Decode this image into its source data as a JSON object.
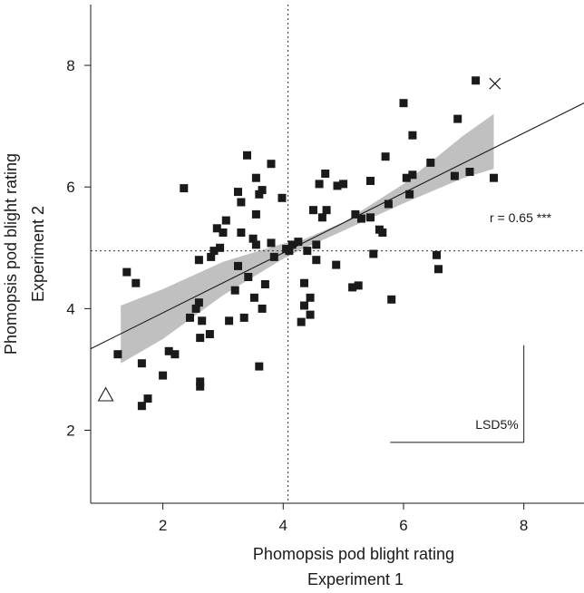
{
  "chart_data": {
    "type": "scatter",
    "xlabel": [
      "Phomopsis pod blight rating",
      "Experiment 1"
    ],
    "ylabel": [
      "Phomopsis pod blight rating",
      "Experiment 2"
    ],
    "xlim": [
      0.8,
      9.0
    ],
    "ylim": [
      0.8,
      9.0
    ],
    "xticks": [
      2,
      4,
      6,
      8
    ],
    "yticks": [
      2,
      4,
      6,
      8
    ],
    "grid": false,
    "colors": {
      "points": "#1a1a1a",
      "band": "#c0c0c0",
      "line": "#1a1a1a"
    },
    "points": [
      [
        1.25,
        3.25
      ],
      [
        1.4,
        4.6
      ],
      [
        1.55,
        4.42
      ],
      [
        1.65,
        3.1
      ],
      [
        1.75,
        2.52
      ],
      [
        1.65,
        2.4
      ],
      [
        2.0,
        2.9
      ],
      [
        2.1,
        3.3
      ],
      [
        2.2,
        3.25
      ],
      [
        2.35,
        5.98
      ],
      [
        2.45,
        3.85
      ],
      [
        2.55,
        4.0
      ],
      [
        2.6,
        4.1
      ],
      [
        2.65,
        3.8
      ],
      [
        2.62,
        3.52
      ],
      [
        2.62,
        2.8
      ],
      [
        2.62,
        2.72
      ],
      [
        2.6,
        4.8
      ],
      [
        2.78,
        3.58
      ],
      [
        2.8,
        4.85
      ],
      [
        2.85,
        4.95
      ],
      [
        2.9,
        5.32
      ],
      [
        2.95,
        5.0
      ],
      [
        3.0,
        5.25
      ],
      [
        3.05,
        5.45
      ],
      [
        3.1,
        3.8
      ],
      [
        3.2,
        4.3
      ],
      [
        3.25,
        4.7
      ],
      [
        3.25,
        5.92
      ],
      [
        3.3,
        5.75
      ],
      [
        3.3,
        5.25
      ],
      [
        3.35,
        3.85
      ],
      [
        3.4,
        6.52
      ],
      [
        3.42,
        4.52
      ],
      [
        3.5,
        5.15
      ],
      [
        3.52,
        4.18
      ],
      [
        3.55,
        5.05
      ],
      [
        3.55,
        5.55
      ],
      [
        3.55,
        6.15
      ],
      [
        3.6,
        5.88
      ],
      [
        3.6,
        3.05
      ],
      [
        3.65,
        5.95
      ],
      [
        3.65,
        4.0
      ],
      [
        3.7,
        4.4
      ],
      [
        3.8,
        6.38
      ],
      [
        3.8,
        5.08
      ],
      [
        3.85,
        4.85
      ],
      [
        3.98,
        5.82
      ],
      [
        4.05,
        4.98
      ],
      [
        4.1,
        4.95
      ],
      [
        4.15,
        5.05
      ],
      [
        4.25,
        5.1
      ],
      [
        4.3,
        3.78
      ],
      [
        4.35,
        4.05
      ],
      [
        4.35,
        4.42
      ],
      [
        4.4,
        4.95
      ],
      [
        4.45,
        3.9
      ],
      [
        4.45,
        4.18
      ],
      [
        4.5,
        5.62
      ],
      [
        4.55,
        4.8
      ],
      [
        4.55,
        5.05
      ],
      [
        4.6,
        6.05
      ],
      [
        4.65,
        5.5
      ],
      [
        4.7,
        6.22
      ],
      [
        4.72,
        5.62
      ],
      [
        4.88,
        4.72
      ],
      [
        4.9,
        6.02
      ],
      [
        5.0,
        6.05
      ],
      [
        5.15,
        4.35
      ],
      [
        5.2,
        5.55
      ],
      [
        5.25,
        4.38
      ],
      [
        5.3,
        5.48
      ],
      [
        5.45,
        5.5
      ],
      [
        5.45,
        6.1
      ],
      [
        5.5,
        4.9
      ],
      [
        5.6,
        5.3
      ],
      [
        5.65,
        5.25
      ],
      [
        5.7,
        6.5
      ],
      [
        5.75,
        5.72
      ],
      [
        5.8,
        4.15
      ],
      [
        6.0,
        7.38
      ],
      [
        6.05,
        6.15
      ],
      [
        6.1,
        5.88
      ],
      [
        6.15,
        6.85
      ],
      [
        6.15,
        6.2
      ],
      [
        6.45,
        6.4
      ],
      [
        6.55,
        4.88
      ],
      [
        6.58,
        4.65
      ],
      [
        6.85,
        6.18
      ],
      [
        6.9,
        7.12
      ],
      [
        7.1,
        6.25
      ],
      [
        7.2,
        7.75
      ],
      [
        7.5,
        6.15
      ]
    ],
    "regression_line": {
      "x": [
        0.8,
        9.0
      ],
      "y": [
        3.34,
        7.38
      ]
    },
    "confidence_band": {
      "x": [
        1.3,
        2.0,
        3.0,
        4.0,
        4.3,
        5.0,
        6.0,
        7.0,
        7.5
      ],
      "lower": [
        3.1,
        3.5,
        4.22,
        4.82,
        4.97,
        5.28,
        5.73,
        6.15,
        6.3
      ],
      "upper": [
        4.05,
        4.32,
        4.77,
        5.07,
        5.12,
        5.42,
        6.05,
        6.85,
        7.2
      ]
    },
    "mean_x": 4.08,
    "mean_y": 4.95,
    "marker_cross": [
      7.52,
      7.7
    ],
    "marker_triangle": [
      1.05,
      2.58
    ],
    "annotation_r": "r = 0.65 ***",
    "lsd_label": "LSD5%",
    "lsd_value": 2.22
  }
}
